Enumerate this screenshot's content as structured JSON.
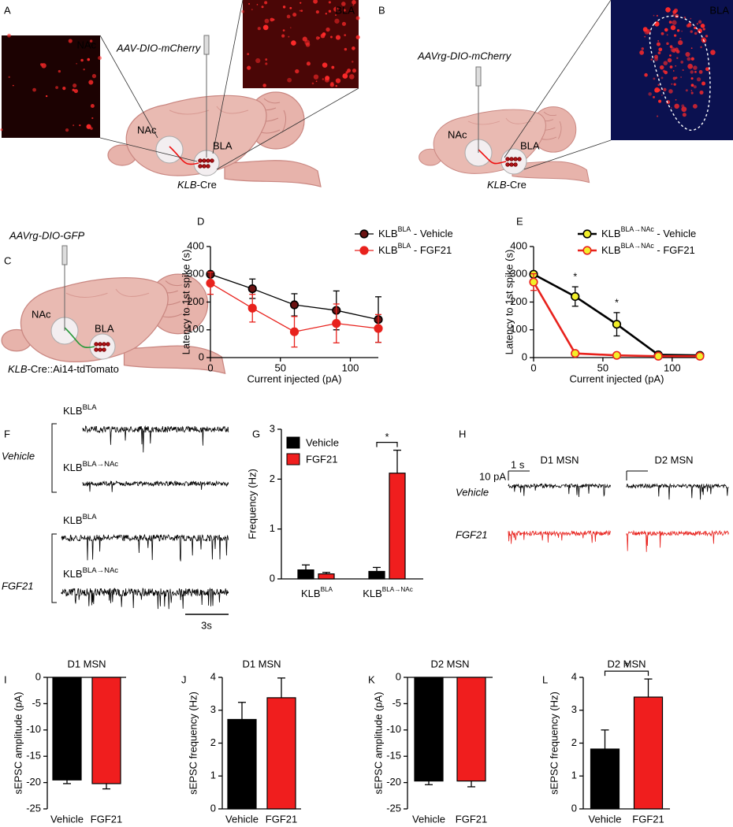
{
  "figure": {
    "panel_letters": [
      "A",
      "B",
      "C",
      "D",
      "E",
      "F",
      "G",
      "H",
      "I",
      "J",
      "K",
      "L"
    ],
    "A": {
      "virus": "AAV-DIO-mCherry",
      "inset_left": "NAc",
      "inset_right": "BLA",
      "nac": "NAc",
      "bla": "BLA",
      "mouse": [
        "KLB",
        "-Cre"
      ]
    },
    "B": {
      "virus": "AAVrg-DIO-mCherry",
      "inset": "BLA",
      "nac": "NAc",
      "bla": "BLA",
      "mouse": [
        "KLB",
        "-Cre"
      ]
    },
    "C": {
      "virus": "AAVrg-DIO-GFP",
      "nac": "NAc",
      "bla": "BLA",
      "mouse": [
        "KLB",
        "-Cre::Ai14-tdTomato"
      ]
    },
    "F": {
      "row_labels": [
        "Vehicle",
        "FGF21"
      ],
      "trace_labels": [
        [
          "KLB",
          "BLA"
        ],
        [
          "KLB",
          "BLA→NAc"
        ],
        [
          "KLB",
          "BLA"
        ],
        [
          "KLB",
          "BLA→NAc"
        ]
      ],
      "scale": "3s"
    },
    "H": {
      "columns": [
        "D1 MSN",
        "D2 MSN"
      ],
      "rows": [
        "Vehicle",
        "FGF21"
      ],
      "scale_y": "10 pA",
      "scale_x": "1 s"
    }
  },
  "chart_data": [
    {
      "type": "line",
      "x": [
        0,
        30,
        60,
        90,
        120
      ],
      "xlim": [
        0,
        120
      ],
      "xticks": [
        0,
        50,
        100
      ],
      "ylim": [
        0,
        400
      ],
      "yticks": [
        0,
        100,
        200,
        300,
        400
      ],
      "xlabel": "Current injected (pA)",
      "ylabel": "Latency to 1st spike (s)",
      "legend": "upper right",
      "series": [
        {
          "name": [
            "KLB",
            "BLA",
            " - Vehicle"
          ],
          "color": "#000000",
          "marker_fill": "#6b1212",
          "values": [
            300,
            248,
            190,
            170,
            137
          ],
          "errors": [
            5,
            35,
            40,
            70,
            82
          ]
        },
        {
          "name": [
            "KLB",
            "BLA",
            " - FGF21"
          ],
          "color": "#e8221d",
          "marker_fill": "#e8221d",
          "values": [
            268,
            178,
            93,
            123,
            105
          ],
          "errors": [
            40,
            50,
            55,
            70,
            50
          ]
        }
      ]
    },
    {
      "type": "line",
      "x": [
        0,
        30,
        60,
        90,
        120
      ],
      "xlim": [
        0,
        120
      ],
      "xticks": [
        0,
        50,
        100
      ],
      "ylim": [
        0,
        400
      ],
      "yticks": [
        0,
        100,
        200,
        300,
        400
      ],
      "xlabel": "Current injected (pA)",
      "ylabel": "Latency to 1st spike (s)",
      "legend": "upper right",
      "series": [
        {
          "name": [
            "KLB",
            "BLA→NAc",
            " - Vehicle"
          ],
          "color": "#000000",
          "marker_fill": "#f2ef2a",
          "values": [
            300,
            220,
            120,
            10,
            8
          ],
          "errors": [
            5,
            35,
            42,
            5,
            4
          ]
        },
        {
          "name": [
            "KLB",
            "BLA→NAc",
            " - FGF21"
          ],
          "color": "#e8221d",
          "marker_fill": "#f2ef2a",
          "values": [
            272,
            15,
            8,
            5,
            5
          ],
          "errors": [
            30,
            5,
            3,
            2,
            2
          ]
        }
      ],
      "annotations": [
        {
          "text": "*",
          "x": 30
        },
        {
          "text": "*",
          "x": 60
        }
      ]
    },
    {
      "type": "bar",
      "categories": [
        [
          "KLB",
          "BLA"
        ],
        [
          "KLB",
          "BLA→NAc"
        ]
      ],
      "ylim": [
        0,
        3
      ],
      "yticks": [
        0,
        1,
        2,
        3
      ],
      "ylabel": "Frequency (Hz)",
      "legend": "upper left",
      "series": [
        {
          "name": "Vehicle",
          "color": "#000000",
          "values": [
            0.18,
            0.15
          ],
          "errors": [
            0.1,
            0.08
          ]
        },
        {
          "name": "FGF21",
          "color": "#f01e1e",
          "values": [
            0.1,
            2.12
          ],
          "errors": [
            0.03,
            0.46
          ]
        }
      ],
      "annotation": "*"
    },
    {
      "type": "bar",
      "title": "D1 MSN",
      "categories": [
        "Vehicle",
        "FGF21"
      ],
      "values": [
        -19.5,
        -20.2
      ],
      "errors": [
        0.7,
        1.0
      ],
      "colors": [
        "#000000",
        "#f01e1e"
      ],
      "ylim": [
        -25,
        0
      ],
      "yticks": [
        -25,
        -20,
        -15,
        -10,
        -5,
        0
      ],
      "ylabel": "sEPSC amplitude (pA)"
    },
    {
      "type": "bar",
      "title": "D1 MSN",
      "categories": [
        "Vehicle",
        "FGF21"
      ],
      "values": [
        2.72,
        3.38
      ],
      "errors": [
        0.52,
        0.6
      ],
      "colors": [
        "#000000",
        "#f01e1e"
      ],
      "ylim": [
        0,
        4
      ],
      "yticks": [
        0,
        1,
        2,
        3,
        4
      ],
      "ylabel": "sEPSC frequency (Hz)"
    },
    {
      "type": "bar",
      "title": "D2 MSN",
      "categories": [
        "Vehicle",
        "FGF21"
      ],
      "values": [
        -19.7,
        -19.7
      ],
      "errors": [
        0.7,
        1.1
      ],
      "colors": [
        "#000000",
        "#f01e1e"
      ],
      "ylim": [
        -25,
        0
      ],
      "yticks": [
        -25,
        -20,
        -15,
        -10,
        -5,
        0
      ],
      "ylabel": "sEPSC amplitude (pA)"
    },
    {
      "type": "bar",
      "title": "D2 MSN",
      "categories": [
        "Vehicle",
        "FGF21"
      ],
      "values": [
        1.82,
        3.4
      ],
      "errors": [
        0.58,
        0.55
      ],
      "colors": [
        "#000000",
        "#f01e1e"
      ],
      "ylim": [
        0,
        4
      ],
      "yticks": [
        0,
        1,
        2,
        3,
        4
      ],
      "ylabel": "sEPSC frequency (Hz)",
      "annotation": "*"
    }
  ]
}
